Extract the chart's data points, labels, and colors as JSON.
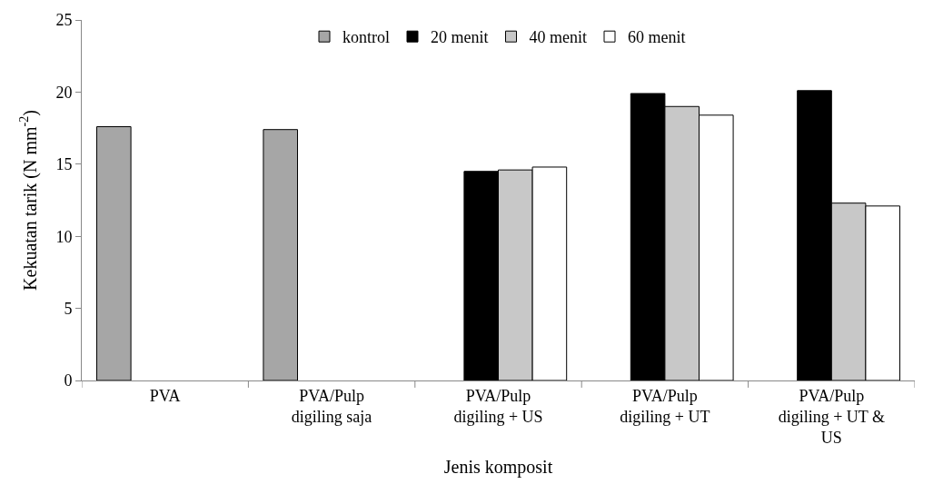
{
  "chart_data": {
    "type": "bar",
    "xlabel": "Jenis komposit",
    "ylabel": "Kekuatan tarik (N mm$^{-2}$)",
    "categories": [
      "PVA",
      "PVA/Pulp digiling saja",
      "PVA/Pulp digiling + US",
      "PVA/Pulp digiling + UT",
      "PVA/Pulp digiling + UT & US"
    ],
    "series": [
      {
        "name": "kontrol",
        "color": "#a6a6a6",
        "values": [
          17.6,
          17.4,
          null,
          null,
          null
        ]
      },
      {
        "name": "20 menit",
        "color": "#000000",
        "values": [
          null,
          null,
          14.5,
          19.9,
          20.1
        ]
      },
      {
        "name": "40 menit",
        "color": "#c8c8c8",
        "values": [
          null,
          null,
          14.6,
          19.0,
          12.3
        ]
      },
      {
        "name": "60 menit",
        "color": "#ffffff",
        "values": [
          null,
          null,
          14.8,
          18.4,
          12.1
        ]
      }
    ],
    "ylim": [
      0,
      25
    ],
    "yticks": [
      0,
      5,
      10,
      15,
      20,
      25
    ],
    "legend": "top"
  }
}
